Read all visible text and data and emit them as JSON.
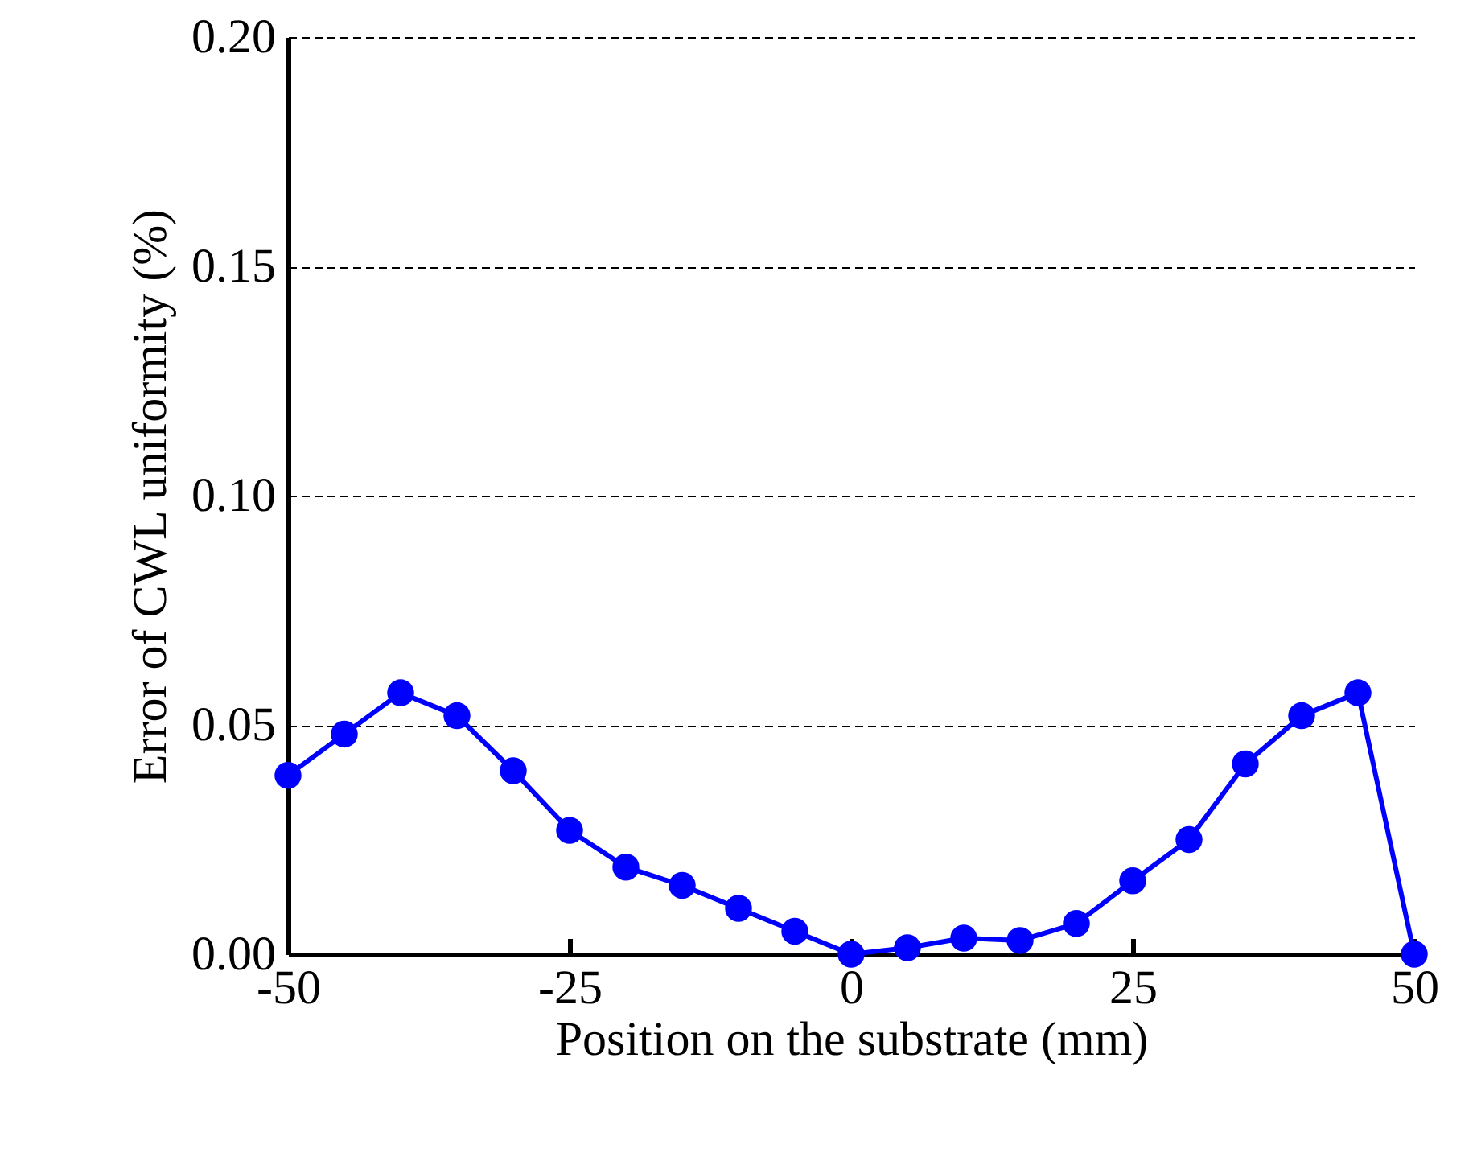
{
  "chart_data": {
    "type": "line",
    "xlabel": "Position on the substrate (mm)",
    "ylabel": "Error of CWL uniformity (%)",
    "x": [
      -50,
      -45,
      -40,
      -35,
      -30,
      -25,
      -20,
      -15,
      -10,
      -5,
      0,
      5,
      10,
      15,
      20,
      25,
      30,
      35,
      40,
      45,
      50
    ],
    "series": [
      {
        "color": "#0000ff",
        "values": [
          0.039,
          0.048,
          0.057,
          0.052,
          0.04,
          0.027,
          0.019,
          0.015,
          0.01,
          0.005,
          0.0,
          0.0014,
          0.0035,
          0.003,
          0.0067,
          0.016,
          0.025,
          0.0415,
          0.052,
          0.057,
          0.0
        ]
      }
    ],
    "xlim": [
      -50,
      50
    ],
    "xticks": [
      -50,
      -25,
      0,
      25,
      50
    ],
    "ylim": [
      0,
      0.2
    ],
    "yticks": [
      {
        "value": 0,
        "label": "0.00"
      },
      {
        "value": 0.05,
        "label": "0.05"
      },
      {
        "value": 0.1,
        "label": "0.10"
      },
      {
        "value": 0.15,
        "label": "0.15"
      },
      {
        "value": 0.2,
        "label": "0.20"
      }
    ],
    "grid": "y",
    "marker": "circle",
    "line_style": "solid"
  }
}
